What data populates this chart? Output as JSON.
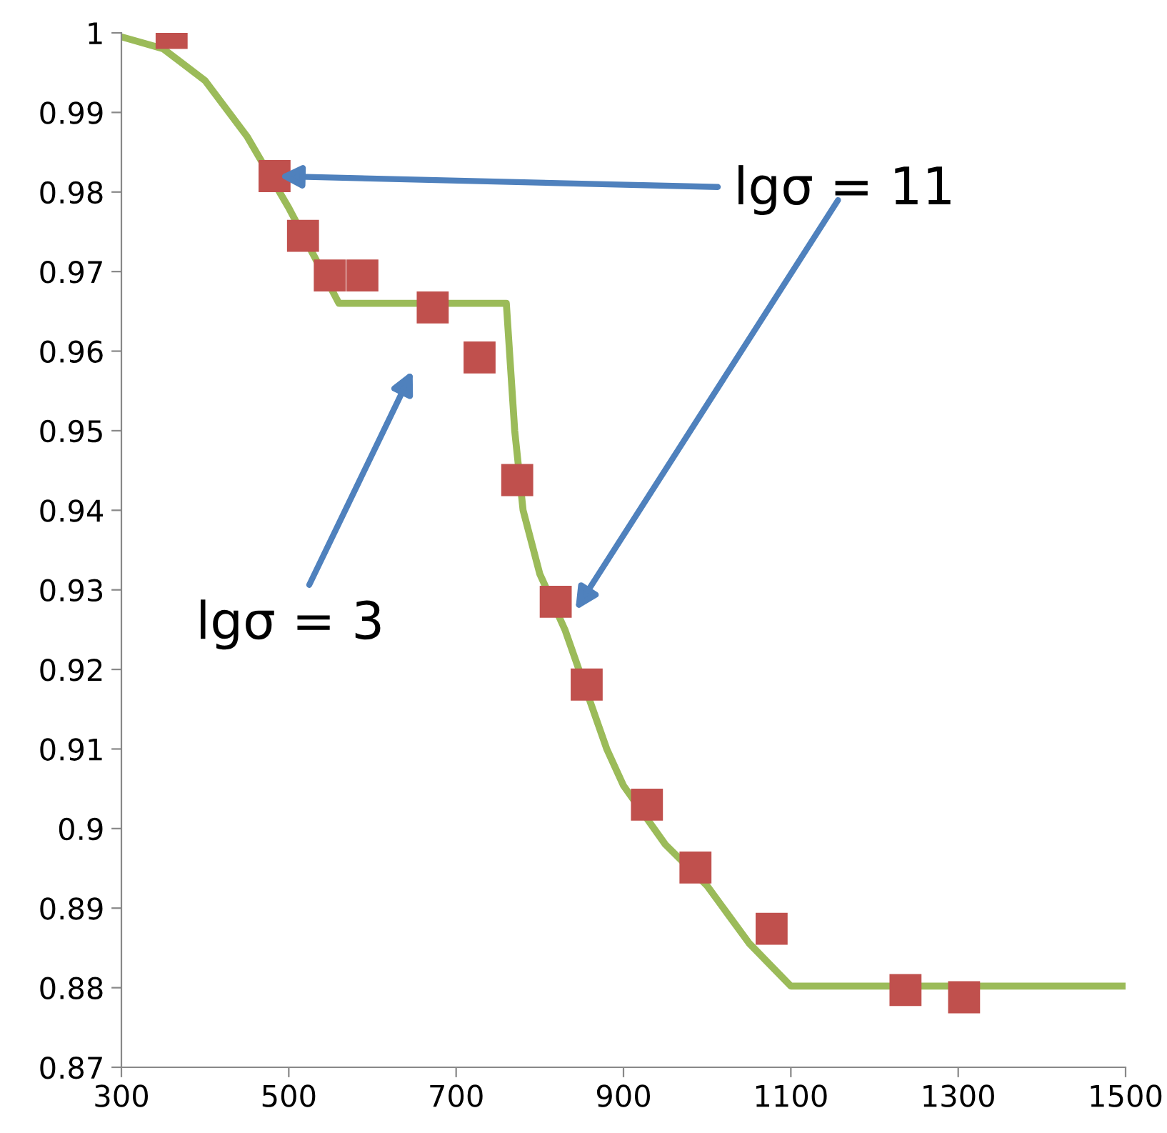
{
  "chart_data": {
    "type": "line",
    "series": [
      {
        "color": "#9bbb59",
        "marker": "none",
        "line_style": "solid",
        "x": [
          300,
          350,
          400,
          450,
          500,
          530,
          560,
          760,
          765,
          770,
          780,
          800,
          830,
          880,
          900,
          950,
          1000,
          1050,
          1100,
          1500
        ],
        "values": [
          0.9995,
          0.998,
          0.994,
          0.987,
          0.978,
          0.972,
          0.966,
          0.966,
          0.958,
          0.95,
          0.94,
          0.932,
          0.925,
          0.91,
          0.9054,
          0.898,
          0.8928,
          0.8856,
          0.8802,
          0.8802
        ]
      },
      {
        "type": "scatter",
        "color": "#c0504d",
        "marker": "square",
        "x": [
          360,
          483,
          517,
          549,
          588,
          672,
          728,
          773,
          819,
          856,
          928,
          986,
          1077,
          1237,
          1307
        ],
        "values": [
          1,
          0.982,
          0.9745,
          0.9695,
          0.9695,
          0.9655,
          0.9592,
          0.9438,
          0.9285,
          0.9181,
          0.903,
          0.8951,
          0.8874,
          0.8797,
          0.8788
        ]
      }
    ],
    "xlim": [
      300,
      1500
    ],
    "xticks": [
      300,
      500,
      700,
      900,
      1100,
      1300,
      1500
    ],
    "ylim": [
      0.87,
      1
    ],
    "yticks": [
      0.87,
      0.88,
      0.89,
      0.9,
      0.91,
      0.92,
      0.93,
      0.94,
      0.95,
      0.96,
      0.97,
      0.98,
      0.99,
      1
    ],
    "grid": false,
    "annotations": [
      "lgσ = 11",
      "lgσ = 3"
    ]
  }
}
